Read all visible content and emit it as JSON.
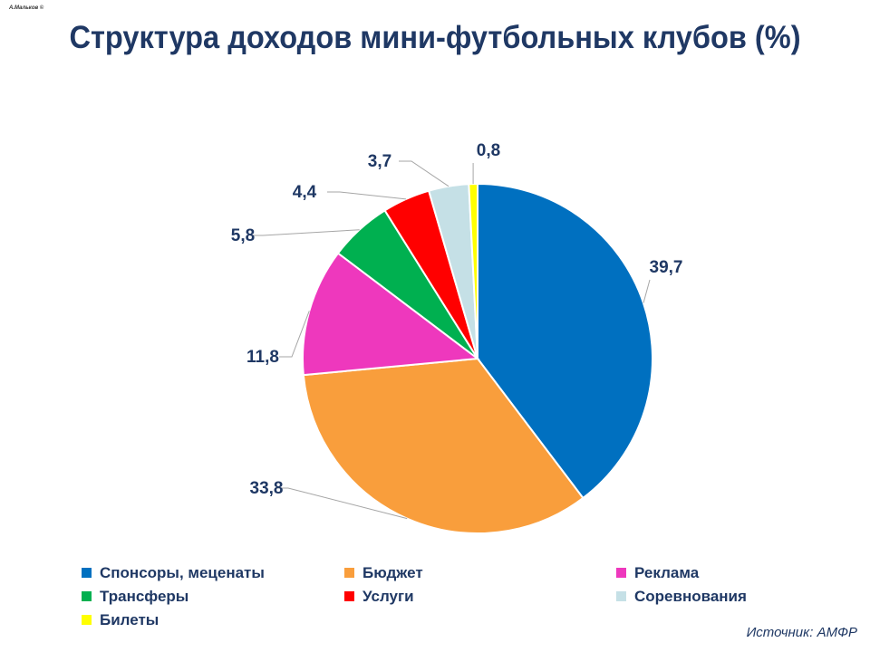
{
  "slide": {
    "corner_mark": "А.Мальков ©",
    "source": "Источник: АМФР"
  },
  "chart_data": {
    "type": "pie",
    "title": "Структура доходов мини-футбольных клубов (%)",
    "start": "12 o'clock, clockwise",
    "slices": [
      {
        "label": "Спонсоры, меценаты",
        "value": 39.7,
        "value_label": "39,7",
        "color": "#0070c0"
      },
      {
        "label": "Бюджет",
        "value": 33.8,
        "value_label": "33,8",
        "color": "#f99e3c"
      },
      {
        "label": "Реклама",
        "value": 11.8,
        "value_label": "11,8",
        "color": "#ee38bd"
      },
      {
        "label": "Трансферы",
        "value": 5.8,
        "value_label": "5,8",
        "color": "#00b050"
      },
      {
        "label": "Услуги",
        "value": 4.4,
        "value_label": "4,4",
        "color": "#ff0000"
      },
      {
        "label": "Соревнования",
        "value": 3.7,
        "value_label": "3,7",
        "color": "#c5e0e6"
      },
      {
        "label": "Билеты",
        "value": 0.8,
        "value_label": "0,8",
        "color": "#ffff00"
      }
    ],
    "legend_position": "bottom"
  }
}
